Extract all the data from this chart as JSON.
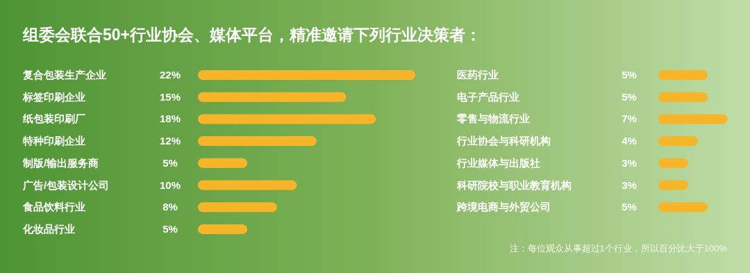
{
  "chart_data": [
    {
      "type": "bar",
      "orientation": "horizontal",
      "title": "组委会联合50+行业协会、媒体平台，精准邀请下列行业决策者：",
      "color": "#f7b52a",
      "categories": [
        "复合包装生产企业",
        "标签印刷企业",
        "纸包装印刷厂",
        "特种印刷企业",
        "制版/输出服务商",
        "广告/包装设计公司",
        "食品饮料行业",
        "化妆品行业"
      ],
      "values": [
        22,
        15,
        18,
        12,
        5,
        10,
        8,
        5
      ],
      "value_labels": [
        "22%",
        "15%",
        "18%",
        "12%",
        "5%",
        "10%",
        "8%",
        "5%"
      ]
    },
    {
      "type": "bar",
      "orientation": "horizontal",
      "color": "#f7b52a",
      "categories": [
        "医药行业",
        "电子产品行业",
        "零售与物流行业",
        "行业协会与科研机构",
        "行业媒体与出版社",
        "科研院校与职业教育机构",
        "跨境电商与外贸公司"
      ],
      "values": [
        5,
        5,
        7,
        4,
        3,
        3,
        5
      ],
      "value_labels": [
        "5%",
        "5%",
        "7%",
        "4%",
        "3%",
        "3%",
        "5%"
      ],
      "annotations": [
        "注：每位观众从事超过1个行业，所以百分比大于100%"
      ]
    }
  ]
}
